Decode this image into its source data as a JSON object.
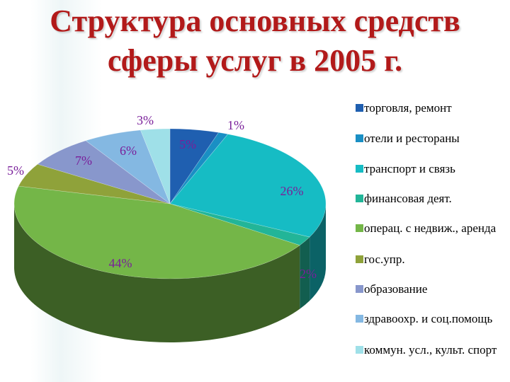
{
  "title": {
    "line1": "Структура основных средств",
    "line2": "сферы услуг в 2005 г."
  },
  "chart_data": {
    "type": "pie",
    "three_d": true,
    "legend_position": "right",
    "categories": [
      "торговля, ремонт",
      "отели и рестораны",
      "транспорт и связь",
      "финансовая  деят.",
      "операц. с недвиж., аренда",
      "гос.упр.",
      "образование",
      "здравоохр. и соц.помощь",
      "коммун. усл., культ. спорт"
    ],
    "values": [
      5,
      1,
      26,
      2,
      44,
      5,
      7,
      6,
      3
    ],
    "data_labels": [
      "5%",
      "1%",
      "26%",
      "2%",
      "44%",
      "5%",
      "7%",
      "6%",
      "3%"
    ],
    "colors": [
      "#1f5fb0",
      "#1a8fc4",
      "#16bcc4",
      "#22b598",
      "#74b648",
      "#8fa23a",
      "#8897cc",
      "#84b8e2",
      "#9fe0e8"
    ]
  }
}
